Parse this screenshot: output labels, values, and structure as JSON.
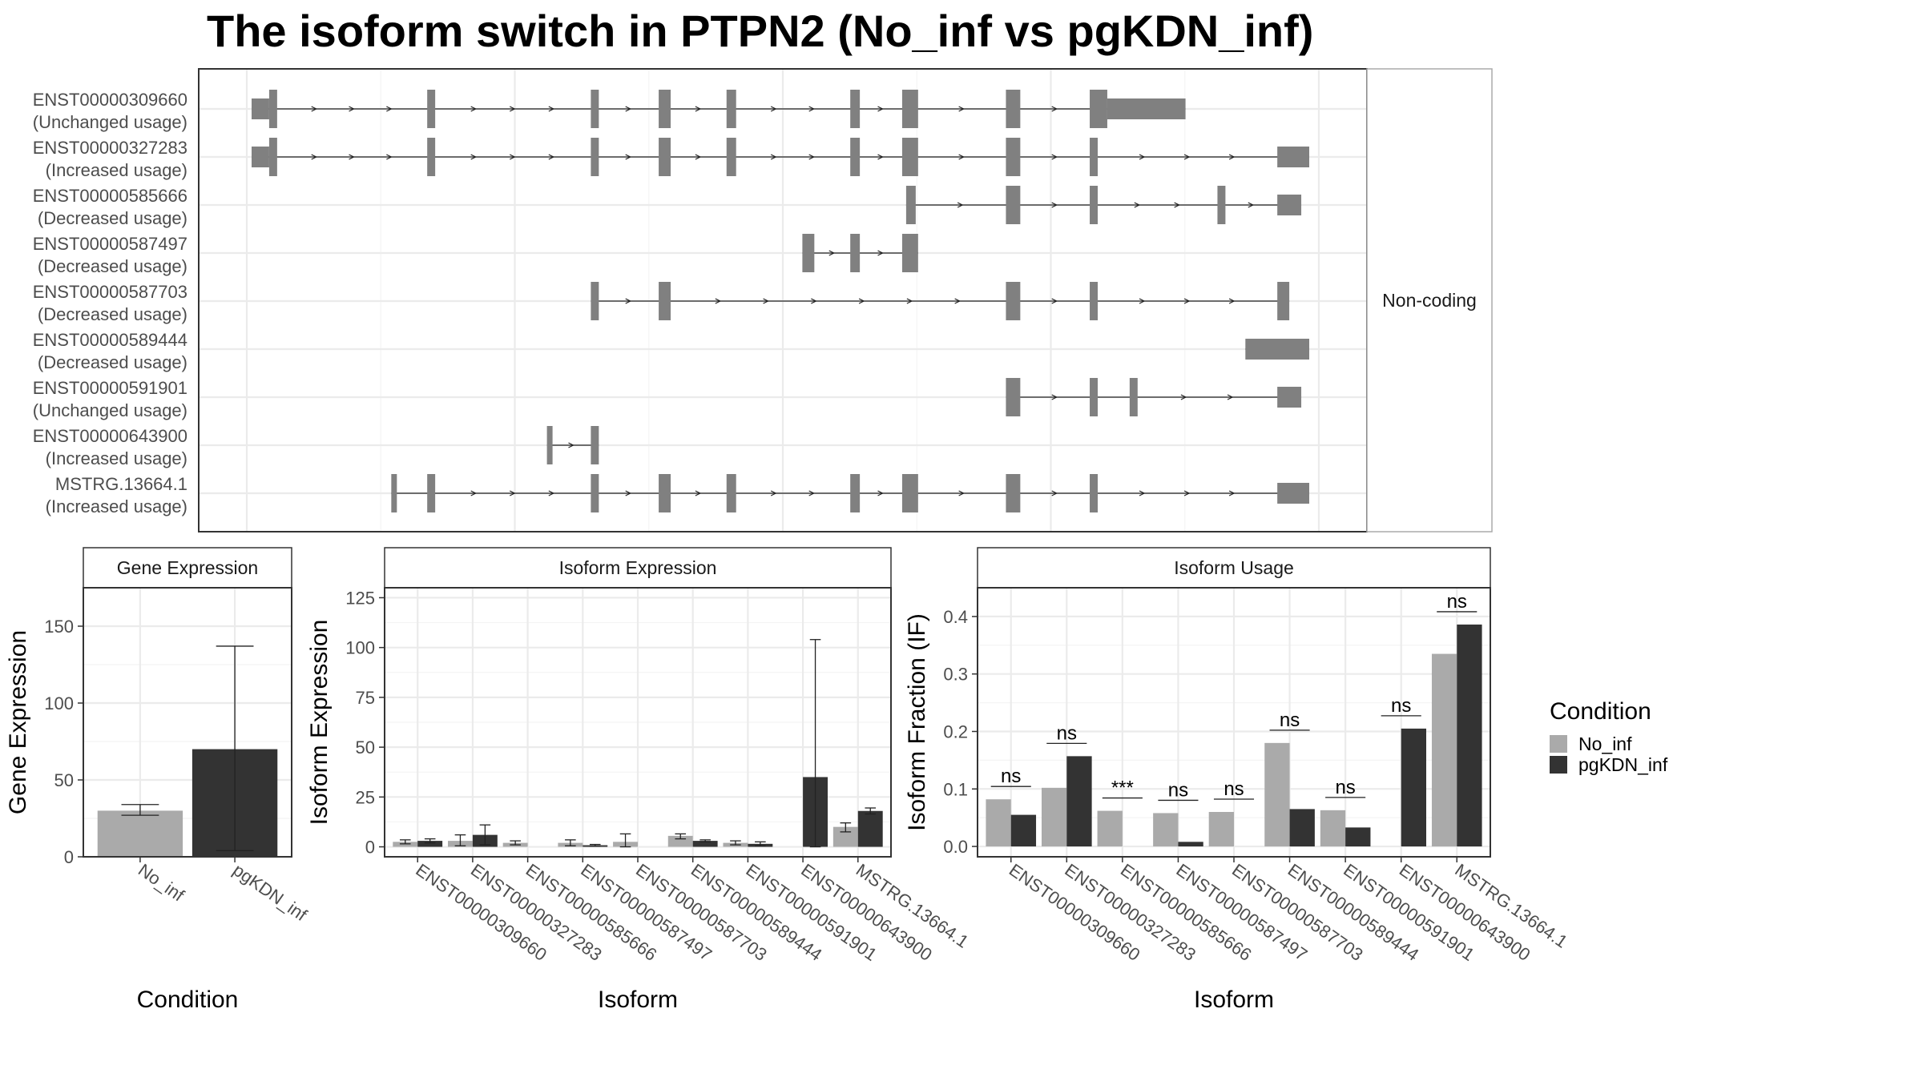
{
  "title": "The isoform switch in PTPN2 (No_inf vs pgKDN_inf)",
  "colors": {
    "No_inf": "#aaaaaa",
    "pgKDN_inf": "#333333",
    "exon": "#808080",
    "panel_bg": "#ffffff",
    "strip_bg": "#ffffff",
    "grid": "#ebebeb"
  },
  "legend": {
    "title": "Condition",
    "items": [
      "No_inf",
      "pgKDN_inf"
    ]
  },
  "chart_data": [
    {
      "type": "gene-structure",
      "panel_label": "Non-coding",
      "isoforms": [
        {
          "id": "ENST00000309660",
          "label": "(Unchanged usage)",
          "exons": [
            [
              0,
              2.2
            ],
            [
              2.2,
              3.2
            ],
            [
              22,
              23
            ],
            [
              42.5,
              43.5
            ],
            [
              51,
              52.5
            ],
            [
              59.5,
              60.7
            ],
            [
              75,
              76.2
            ],
            [
              81.5,
              83.5
            ],
            [
              94.5,
              96.3
            ],
            [
              105,
              107.2
            ],
            [
              107.2,
              117
            ]
          ]
        },
        {
          "id": "ENST00000327283",
          "label": "(Increased usage)",
          "exons": [
            [
              0,
              2.2
            ],
            [
              2.2,
              3.2
            ],
            [
              22,
              23
            ],
            [
              42.5,
              43.5
            ],
            [
              51,
              52.5
            ],
            [
              59.5,
              60.7
            ],
            [
              75,
              76.2
            ],
            [
              81.5,
              83.5
            ],
            [
              94.5,
              96.3
            ],
            [
              105,
              106
            ],
            [
              128.5,
              132.5
            ]
          ]
        },
        {
          "id": "ENST00000585666",
          "label": "(Decreased usage)",
          "exons": [
            [
              82,
              83.2
            ],
            [
              94.5,
              96.3
            ],
            [
              105,
              106
            ],
            [
              121,
              122
            ],
            [
              128.5,
              131.5
            ]
          ]
        },
        {
          "id": "ENST00000587497",
          "label": "(Decreased usage)",
          "exons": [
            [
              69,
              70.5
            ],
            [
              75,
              76.2
            ],
            [
              81.5,
              83.5
            ]
          ]
        },
        {
          "id": "ENST00000587703",
          "label": "(Decreased usage)",
          "exons": [
            [
              42.5,
              43.5
            ],
            [
              51,
              52.5
            ],
            [
              94.5,
              96.3
            ],
            [
              105,
              106
            ],
            [
              128.5,
              130
            ]
          ]
        },
        {
          "id": "ENST00000589444",
          "label": "(Decreased usage)",
          "exons": [
            [
              124.5,
              132.5
            ]
          ]
        },
        {
          "id": "ENST00000591901",
          "label": "(Unchanged usage)",
          "exons": [
            [
              94.5,
              96.3
            ],
            [
              105,
              106
            ],
            [
              110,
              111
            ],
            [
              128.5,
              131.5
            ]
          ]
        },
        {
          "id": "ENST00000643900",
          "label": "(Increased usage)",
          "exons": [
            [
              37,
              37.7
            ],
            [
              42.5,
              43.5
            ]
          ]
        },
        {
          "id": "MSTRG.13664.1",
          "label": "(Increased usage)",
          "exons": [
            [
              17.5,
              18.2
            ],
            [
              22,
              23
            ],
            [
              42.5,
              43.5
            ],
            [
              51,
              52.5
            ],
            [
              59.5,
              60.7
            ],
            [
              75,
              76.2
            ],
            [
              81.5,
              83.5
            ],
            [
              94.5,
              96.3
            ],
            [
              105,
              106
            ],
            [
              128.5,
              132.5
            ]
          ]
        }
      ]
    },
    {
      "type": "bar",
      "title": "Gene Expression",
      "xlabel": "Condition",
      "ylabel": "Gene Expression",
      "ylim": [
        0,
        175
      ],
      "yticks": [
        0,
        50,
        100,
        150
      ],
      "categories": [
        "No_inf",
        "pgKDN_inf"
      ],
      "values": [
        30,
        70
      ],
      "errors": [
        [
          27,
          34
        ],
        [
          4,
          137
        ]
      ]
    },
    {
      "type": "bar",
      "title": "Isoform Expression",
      "xlabel": "Isoform",
      "ylabel": "Isoform Expression",
      "ylim": [
        -5,
        130
      ],
      "yticks": [
        0,
        25,
        50,
        75,
        100,
        125
      ],
      "categories": [
        "ENST00000309660",
        "ENST00000327283",
        "ENST00000585666",
        "ENST00000587497",
        "ENST00000587703",
        "ENST00000589444",
        "ENST00000591901",
        "ENST00000643900",
        "MSTRG.13664.1"
      ],
      "series": [
        {
          "name": "No_inf",
          "values": [
            2.5,
            3,
            2,
            2,
            2.5,
            5.5,
            2,
            0,
            10
          ],
          "errors": [
            [
              1.5,
              3.5
            ],
            [
              0.5,
              6
            ],
            [
              1,
              3
            ],
            [
              0.5,
              3.5
            ],
            [
              0,
              6.5
            ],
            [
              4,
              6.5
            ],
            [
              1,
              3
            ],
            [
              0,
              0
            ],
            [
              7.5,
              12
            ]
          ]
        },
        {
          "name": "pgKDN_inf",
          "values": [
            3,
            6,
            0,
            0.8,
            0,
            3,
            1.5,
            35,
            18
          ],
          "errors": [
            [
              2,
              4
            ],
            [
              1,
              11
            ],
            [
              0,
              0
            ],
            [
              0.3,
              1.2
            ],
            [
              0,
              0
            ],
            [
              2.5,
              3.5
            ],
            [
              0.5,
              2.5
            ],
            [
              0,
              104
            ],
            [
              16.5,
              19.5
            ]
          ]
        }
      ]
    },
    {
      "type": "bar",
      "title": "Isoform Usage",
      "xlabel": "Isoform",
      "ylabel": "Isoform Fraction (IF)",
      "ylim": [
        -0.018,
        0.45
      ],
      "yticks": [
        0.0,
        0.1,
        0.2,
        0.3,
        0.4
      ],
      "categories": [
        "ENST00000309660",
        "ENST00000327283",
        "ENST00000585666",
        "ENST00000587497",
        "ENST00000587703",
        "ENST00000589444",
        "ENST00000591901",
        "ENST00000643900",
        "MSTRG.13664.1"
      ],
      "series": [
        {
          "name": "No_inf",
          "values": [
            0.082,
            0.102,
            0.062,
            0.058,
            0.06,
            0.18,
            0.063,
            0,
            0.335
          ]
        },
        {
          "name": "pgKDN_inf",
          "values": [
            0.055,
            0.157,
            0,
            0.008,
            0,
            0.065,
            0.033,
            0.205,
            0.386
          ]
        }
      ],
      "significance": [
        "ns",
        "ns",
        "***",
        "ns",
        "ns",
        "ns",
        "ns",
        "ns",
        "ns"
      ]
    }
  ]
}
